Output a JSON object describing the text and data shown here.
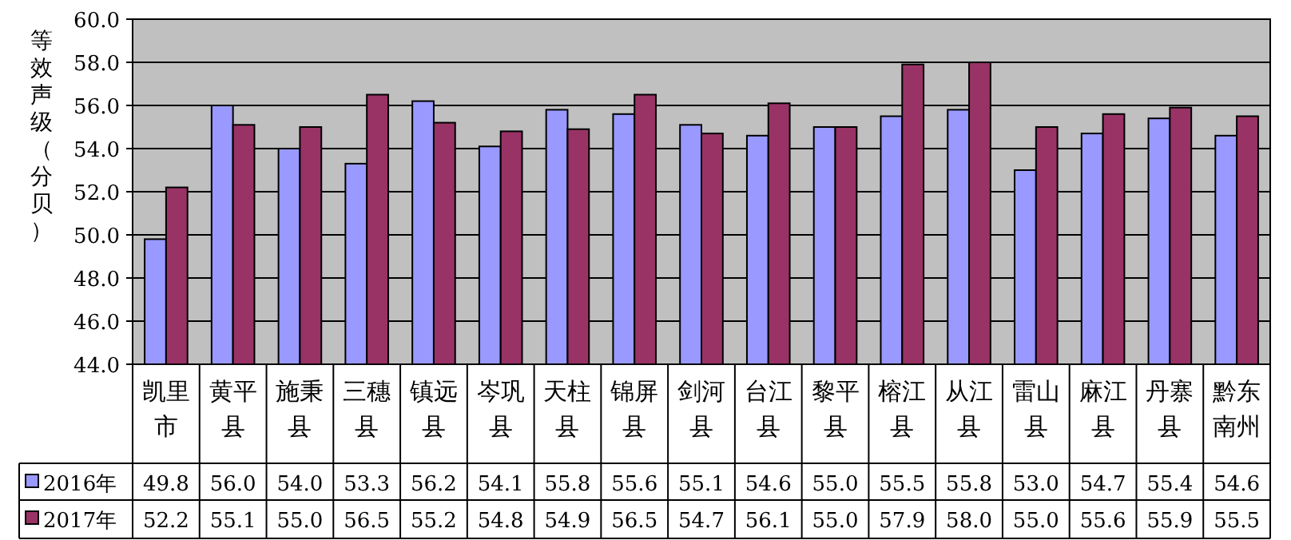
{
  "chart_data": {
    "type": "bar",
    "ylabel": "等效声级（分贝）",
    "categories": [
      "凯里市",
      "黄平县",
      "施秉县",
      "三穗县",
      "镇远县",
      "岑巩县",
      "天柱县",
      "锦屏县",
      "剑河县",
      "台江县",
      "黎平县",
      "榕江县",
      "从江县",
      "雷山县",
      "麻江县",
      "丹寨县",
      "黔东南州"
    ],
    "series": [
      {
        "name": "2016年",
        "color": "#9999ff",
        "values": [
          49.8,
          56.0,
          54.0,
          53.3,
          56.2,
          54.1,
          55.8,
          55.6,
          55.1,
          54.6,
          55.0,
          55.5,
          55.8,
          53.0,
          54.7,
          55.4,
          54.6
        ],
        "value_labels": [
          "49.8",
          "56.0",
          "54.0",
          "53.3",
          "56.2",
          "54.1",
          "55.8",
          "55.6",
          "55.1",
          "54.6",
          "55.0",
          "55.5",
          "55.8",
          "53.0",
          "54.7",
          "55.4",
          "54.6"
        ]
      },
      {
        "name": "2017年",
        "color": "#993366",
        "values": [
          52.2,
          55.1,
          55.0,
          56.5,
          55.2,
          54.8,
          54.9,
          56.5,
          54.7,
          56.1,
          55.0,
          57.9,
          58.0,
          55.0,
          55.6,
          55.9,
          55.5
        ],
        "value_labels": [
          "52.2",
          "55.1",
          "55.0",
          "56.5",
          "55.2",
          "54.8",
          "54.9",
          "56.5",
          "54.7",
          "56.1",
          "55.0",
          "57.9",
          "58.0",
          "55.0",
          "55.6",
          "55.9",
          "55.5"
        ]
      }
    ],
    "ylim": [
      44,
      60
    ],
    "yticks": [
      {
        "value": 44,
        "label": "44.0"
      },
      {
        "value": 46,
        "label": "46.0"
      },
      {
        "value": 48,
        "label": "48.0"
      },
      {
        "value": 50,
        "label": "50.0"
      },
      {
        "value": 52,
        "label": "52.0"
      },
      {
        "value": 54,
        "label": "54.0"
      },
      {
        "value": 56,
        "label": "56.0"
      },
      {
        "value": 58,
        "label": "58.0"
      },
      {
        "value": 60,
        "label": "60.0"
      }
    ],
    "grid": "y",
    "legend": "bottom left"
  }
}
